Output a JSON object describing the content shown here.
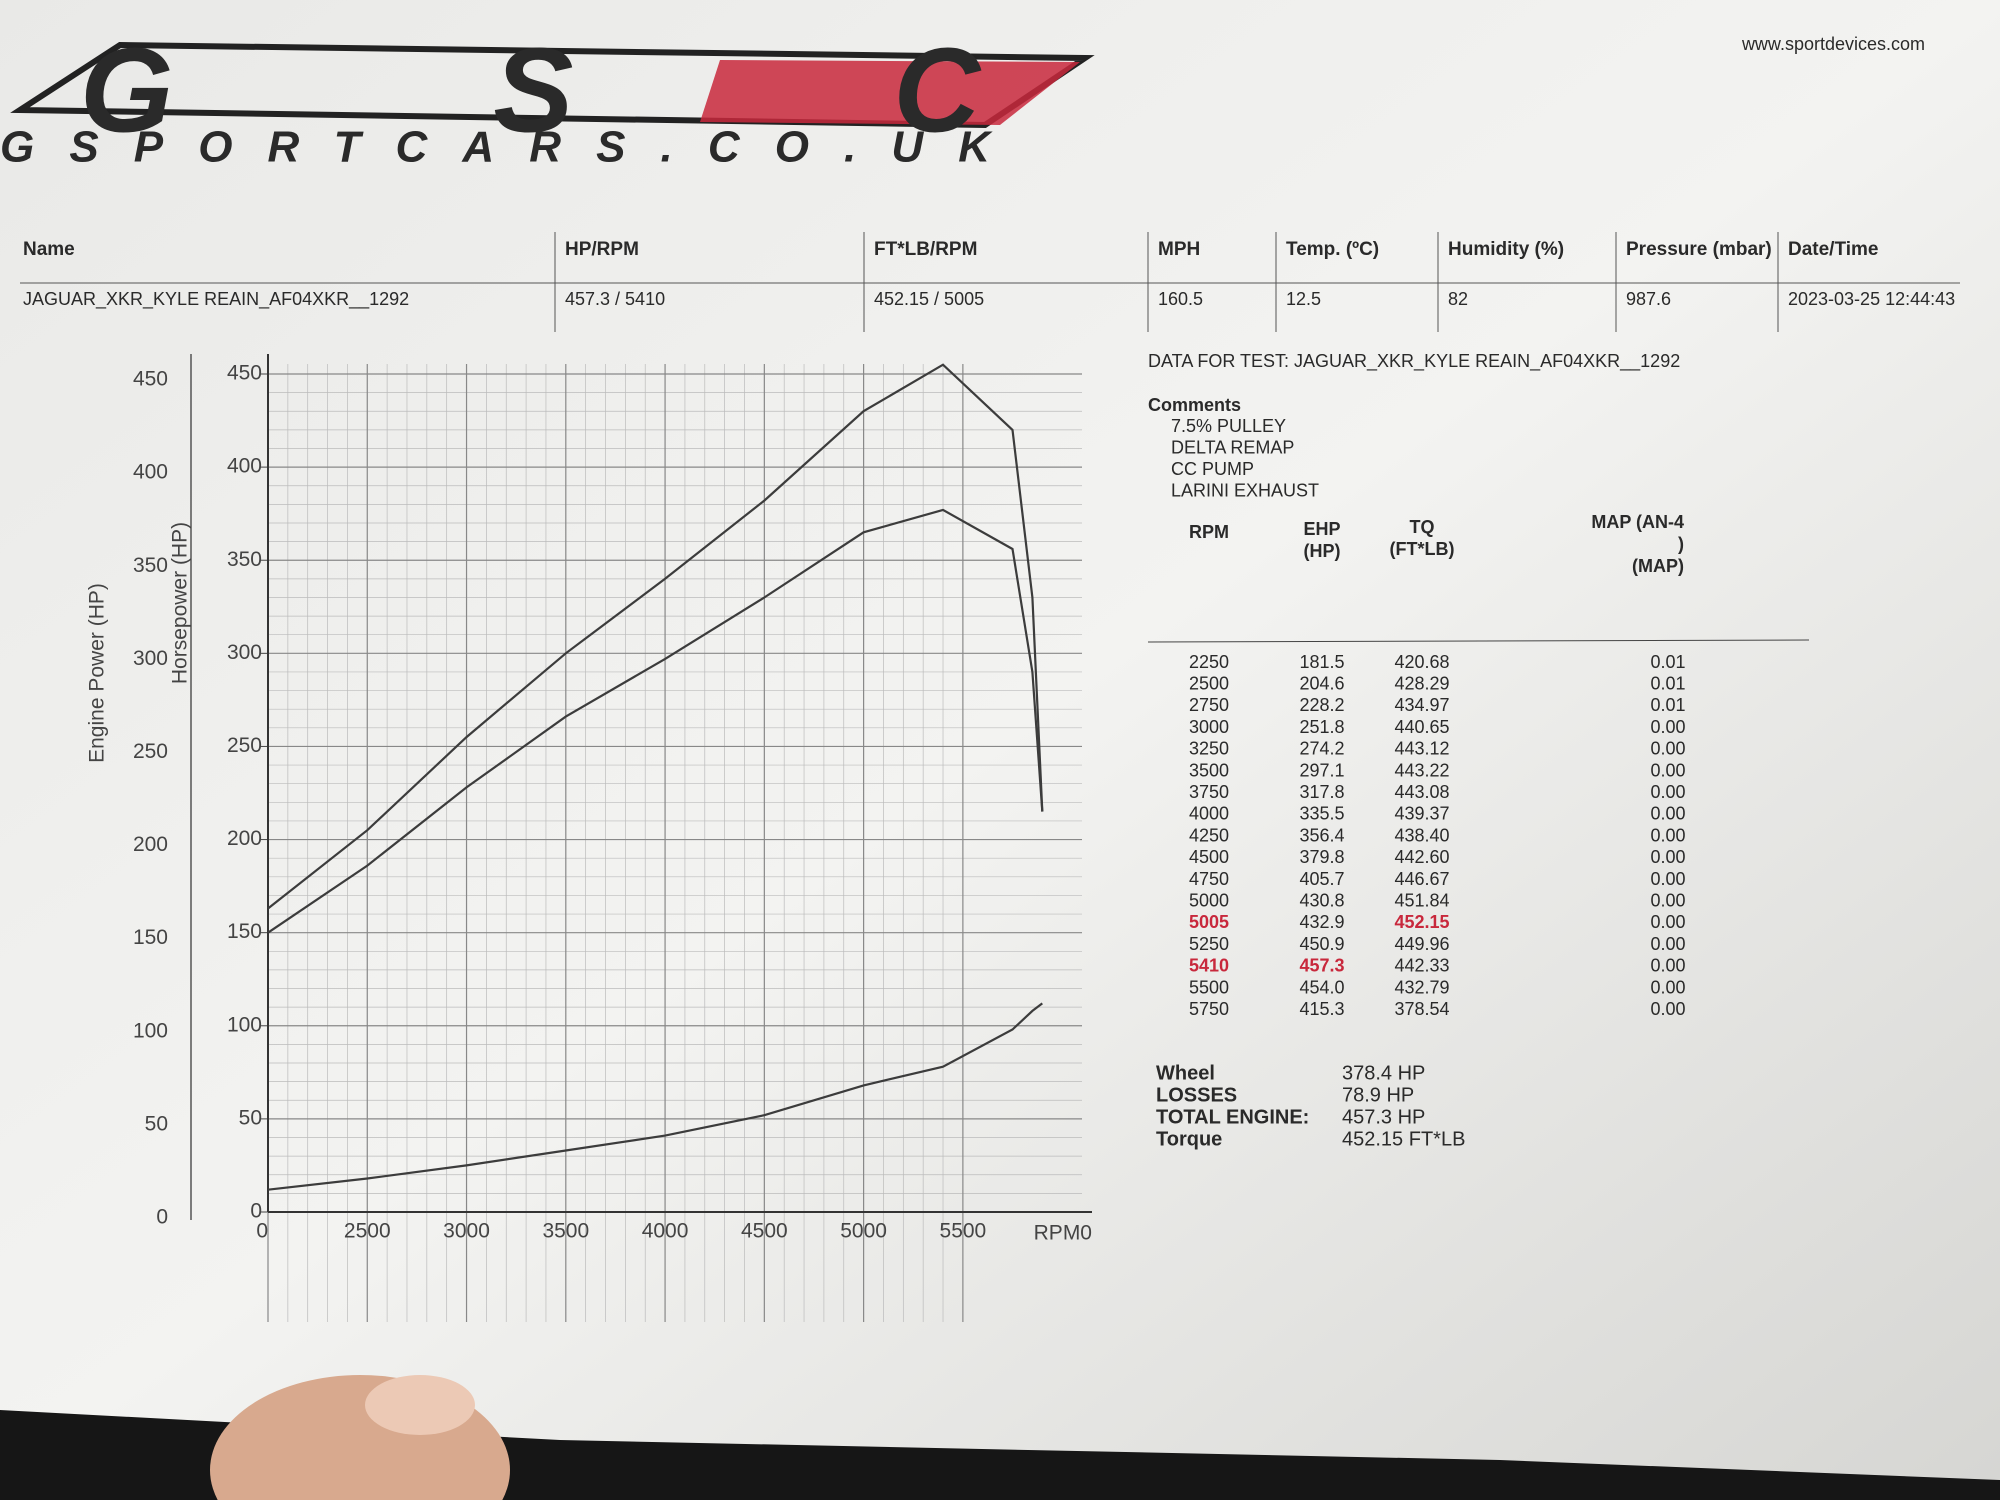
{
  "header": {
    "logo": "GSC",
    "logo_sub": "GSPORTCARS.CO.UK",
    "website": "www.sportdevices.com"
  },
  "info": {
    "columns": [
      "Name",
      "HP/RPM",
      "FT*LB/RPM",
      "MPH",
      "Temp. (ºC)",
      "Humidity (%)",
      "Pressure (mbar)",
      "Date/Time"
    ],
    "values": [
      "JAGUAR_XKR_KYLE REAIN_AF04XKR__1292",
      "457.3 / 5410",
      "452.15 / 5005",
      "160.5",
      "12.5",
      "82",
      "987.6",
      "2023-03-25 12:44:43"
    ]
  },
  "chart_data": {
    "type": "line",
    "x": [
      2000,
      2500,
      3000,
      3500,
      4000,
      4500,
      5000,
      5400,
      5750,
      5850,
      5900
    ],
    "series": [
      {
        "color": "#3c3c3c",
        "values": [
          163,
          205,
          255,
          300,
          340,
          382,
          430,
          455,
          420,
          330,
          215
        ]
      },
      {
        "color": "#3c3c3c",
        "values": [
          150,
          186,
          228,
          266,
          297,
          330,
          365,
          377,
          356,
          290,
          215
        ]
      },
      {
        "color": "#3c3c3c",
        "values": [
          12,
          18,
          25,
          33,
          41,
          52,
          68,
          78,
          98,
          108,
          112
        ]
      }
    ],
    "xlim": [
      2000,
      6100
    ],
    "xticks": [
      {
        "value": 2000,
        "label": "0"
      },
      2500,
      3000,
      3500,
      4000,
      4500,
      5000,
      5500
    ],
    "x_label": "RPM0",
    "ylim": [
      0,
      450
    ],
    "yticks": [
      0,
      50,
      100,
      150,
      200,
      250,
      300,
      350,
      400,
      450
    ],
    "y_label": "Engine Power (HP)",
    "y2lim": [
      0,
      450
    ],
    "y2ticks": [
      0,
      50,
      100,
      150,
      200,
      250,
      300,
      350,
      400,
      450
    ],
    "y2_label": "Horsepower (HP)",
    "grid": true
  },
  "test": "DATA FOR TEST: JAGUAR_XKR_KYLE REAIN_AF04XKR__1292",
  "comments": {
    "title": "Comments",
    "items": [
      "7.5% PULLEY",
      "DELTA REMAP",
      "CC PUMP",
      "LARINI EXHAUST"
    ]
  },
  "table": {
    "columns": [
      "RPM",
      "EHP\n(HP)",
      "TQ\n(FT*LB)",
      "MAP   (AN-4\n)\n(MAP)"
    ],
    "rows": [
      [
        "2250",
        "181.5",
        "420.68",
        "0.01"
      ],
      [
        "2500",
        "204.6",
        "428.29",
        "0.01"
      ],
      [
        "2750",
        "228.2",
        "434.97",
        "0.01"
      ],
      [
        "3000",
        "251.8",
        "440.65",
        "0.00"
      ],
      [
        "3250",
        "274.2",
        "443.12",
        "0.00"
      ],
      [
        "3500",
        "297.1",
        "443.22",
        "0.00"
      ],
      [
        "3750",
        "317.8",
        "443.08",
        "0.00"
      ],
      [
        "4000",
        "335.5",
        "439.37",
        "0.00"
      ],
      [
        "4250",
        "356.4",
        "438.40",
        "0.00"
      ],
      [
        "4500",
        "379.8",
        "442.60",
        "0.00"
      ],
      [
        "4750",
        "405.7",
        "446.67",
        "0.00"
      ],
      [
        "5000",
        "430.8",
        "451.84",
        "0.00"
      ],
      [
        "5005",
        "432.9",
        "452.15",
        "0.00"
      ],
      [
        "5250",
        "450.9",
        "449.96",
        "0.00"
      ],
      [
        "5410",
        "457.3",
        "442.33",
        "0.00"
      ],
      [
        "5500",
        "454.0",
        "432.79",
        "0.00"
      ],
      [
        "5750",
        "415.3",
        "378.54",
        "0.00"
      ]
    ]
  },
  "highlight": {
    "color": "#c8283c",
    "cells": [
      [
        12,
        0
      ],
      [
        12,
        2
      ],
      [
        14,
        0
      ],
      [
        14,
        1
      ]
    ]
  },
  "summary": [
    {
      "label": "Wheel",
      "value": "378.4 HP"
    },
    {
      "label": "LOSSES",
      "value": "78.9 HP"
    },
    {
      "label": "TOTAL ENGINE:",
      "value": "457.3 HP"
    },
    {
      "label": "Torque",
      "value": "452.15 FT*LB"
    }
  ]
}
